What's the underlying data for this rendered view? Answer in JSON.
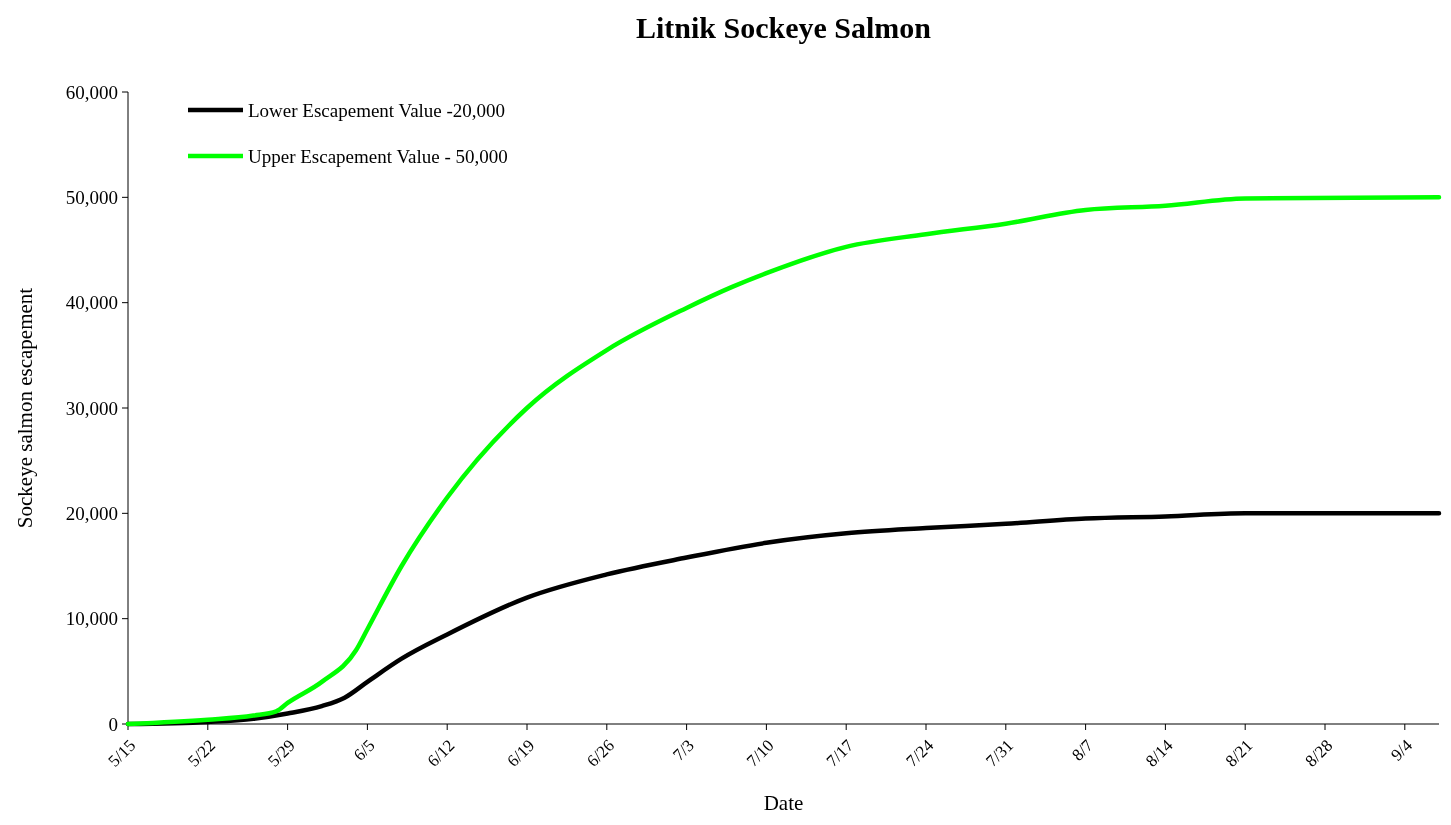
{
  "chart_data": {
    "type": "line",
    "title": "Litnik Sockeye Salmon",
    "xlabel": "Date",
    "ylabel": "Sockeye salmon escapement",
    "xlim": [
      "--05-15",
      "--09-07"
    ],
    "xticks": [
      {
        "value": "--05-15",
        "label": "5/15"
      },
      {
        "value": "--05-22",
        "label": "5/22"
      },
      {
        "value": "--05-29",
        "label": "5/29"
      },
      {
        "value": "--06-05",
        "label": "6/5"
      },
      {
        "value": "--06-12",
        "label": "6/12"
      },
      {
        "value": "--06-19",
        "label": "6/19"
      },
      {
        "value": "--06-26",
        "label": "6/26"
      },
      {
        "value": "--07-03",
        "label": "7/3"
      },
      {
        "value": "--07-10",
        "label": "7/10"
      },
      {
        "value": "--07-17",
        "label": "7/17"
      },
      {
        "value": "--07-24",
        "label": "7/24"
      },
      {
        "value": "--07-31",
        "label": "7/31"
      },
      {
        "value": "--08-07",
        "label": "8/7"
      },
      {
        "value": "--08-14",
        "label": "8/14"
      },
      {
        "value": "--08-21",
        "label": "8/21"
      },
      {
        "value": "--08-28",
        "label": "8/28"
      },
      {
        "value": "--09-04",
        "label": "9/4"
      }
    ],
    "ylim": [
      0,
      60000
    ],
    "yticks": [
      {
        "value": 0,
        "label": "0"
      },
      {
        "value": 10000,
        "label": "10,000"
      },
      {
        "value": 20000,
        "label": "20,000"
      },
      {
        "value": 30000,
        "label": "30,000"
      },
      {
        "value": 40000,
        "label": "40,000"
      },
      {
        "value": 50000,
        "label": "50,000"
      },
      {
        "value": 60000,
        "label": "60,000"
      }
    ],
    "grid": false,
    "legend": "top left",
    "marker": "none",
    "line_style": "solid",
    "series": [
      {
        "name": "Lower Escapement Value -20,000",
        "color": "#000000",
        "x": [
          "--05-15",
          "--05-22",
          "--05-26",
          "--05-29",
          "--06-01",
          "--06-03",
          "--06-05",
          "--06-08",
          "--06-12",
          "--06-19",
          "--06-26",
          "--07-03",
          "--07-10",
          "--07-17",
          "--07-24",
          "--07-31",
          "--08-07",
          "--08-14",
          "--08-21",
          "--09-07"
        ],
        "values": [
          0,
          200,
          500,
          1000,
          1700,
          2500,
          4000,
          6200,
          8500,
          12000,
          14200,
          15800,
          17200,
          18100,
          18600,
          19000,
          19500,
          19700,
          20000,
          20000
        ]
      },
      {
        "name": "Upper Escapement Value - 50,000",
        "color": "#00ff00",
        "x": [
          "--05-15",
          "--05-22",
          "--05-26",
          "--05-28",
          "--05-29",
          "--06-01",
          "--06-04",
          "--06-05",
          "--06-08",
          "--06-12",
          "--06-19",
          "--06-26",
          "--07-03",
          "--07-07",
          "--07-10",
          "--07-17",
          "--07-24",
          "--07-31",
          "--08-07",
          "--08-14",
          "--08-21",
          "--09-07"
        ],
        "values": [
          0,
          400,
          800,
          1200,
          2000,
          4000,
          7000,
          9000,
          15000,
          21500,
          30000,
          35500,
          39500,
          41500,
          42800,
          45300,
          46500,
          47500,
          48800,
          49200,
          49900,
          50000
        ]
      }
    ]
  }
}
